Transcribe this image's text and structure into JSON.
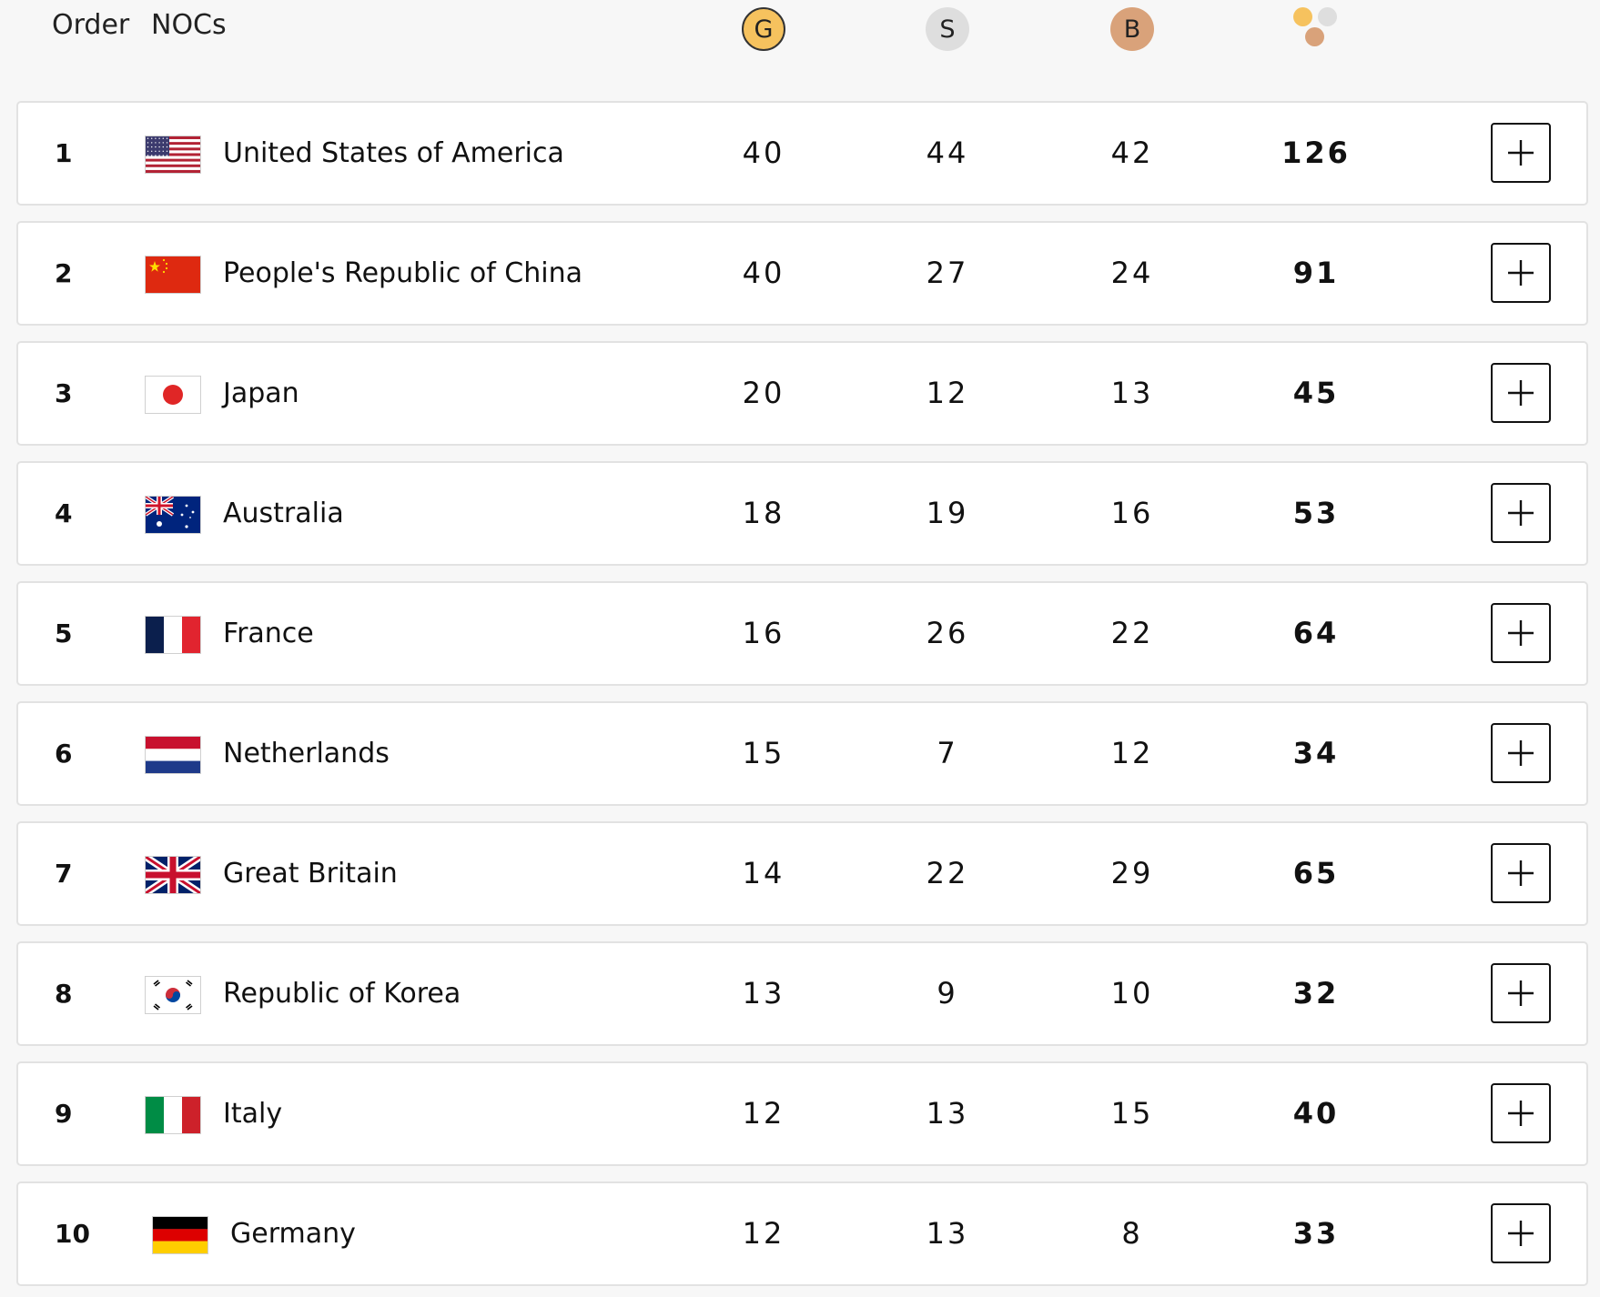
{
  "header": {
    "order_label": "Order",
    "noc_label": "NOCs",
    "gold_label": "G",
    "silver_label": "S",
    "bronze_label": "B",
    "total_icon": "medals-total-icon"
  },
  "colors": {
    "gold": "#f6c25e",
    "silver": "#dedede",
    "bronze": "#d9a27a"
  },
  "expand_icon": "plus-icon",
  "rows": [
    {
      "rank": "1",
      "country": "United States of America",
      "flag": "usa",
      "gold": "40",
      "silver": "44",
      "bronze": "42",
      "total": "126"
    },
    {
      "rank": "2",
      "country": "People's Republic of China",
      "flag": "china",
      "gold": "40",
      "silver": "27",
      "bronze": "24",
      "total": "91"
    },
    {
      "rank": "3",
      "country": "Japan",
      "flag": "japan",
      "gold": "20",
      "silver": "12",
      "bronze": "13",
      "total": "45"
    },
    {
      "rank": "4",
      "country": "Australia",
      "flag": "australia",
      "gold": "18",
      "silver": "19",
      "bronze": "16",
      "total": "53"
    },
    {
      "rank": "5",
      "country": "France",
      "flag": "france",
      "gold": "16",
      "silver": "26",
      "bronze": "22",
      "total": "64"
    },
    {
      "rank": "6",
      "country": "Netherlands",
      "flag": "netherlands",
      "gold": "15",
      "silver": "7",
      "bronze": "12",
      "total": "34"
    },
    {
      "rank": "7",
      "country": "Great Britain",
      "flag": "great-britain",
      "gold": "14",
      "silver": "22",
      "bronze": "29",
      "total": "65"
    },
    {
      "rank": "8",
      "country": "Republic of Korea",
      "flag": "korea",
      "gold": "13",
      "silver": "9",
      "bronze": "10",
      "total": "32"
    },
    {
      "rank": "9",
      "country": "Italy",
      "flag": "italy",
      "gold": "12",
      "silver": "13",
      "bronze": "15",
      "total": "40"
    },
    {
      "rank": "10",
      "country": "Germany",
      "flag": "germany",
      "gold": "12",
      "silver": "13",
      "bronze": "8",
      "total": "33"
    }
  ]
}
